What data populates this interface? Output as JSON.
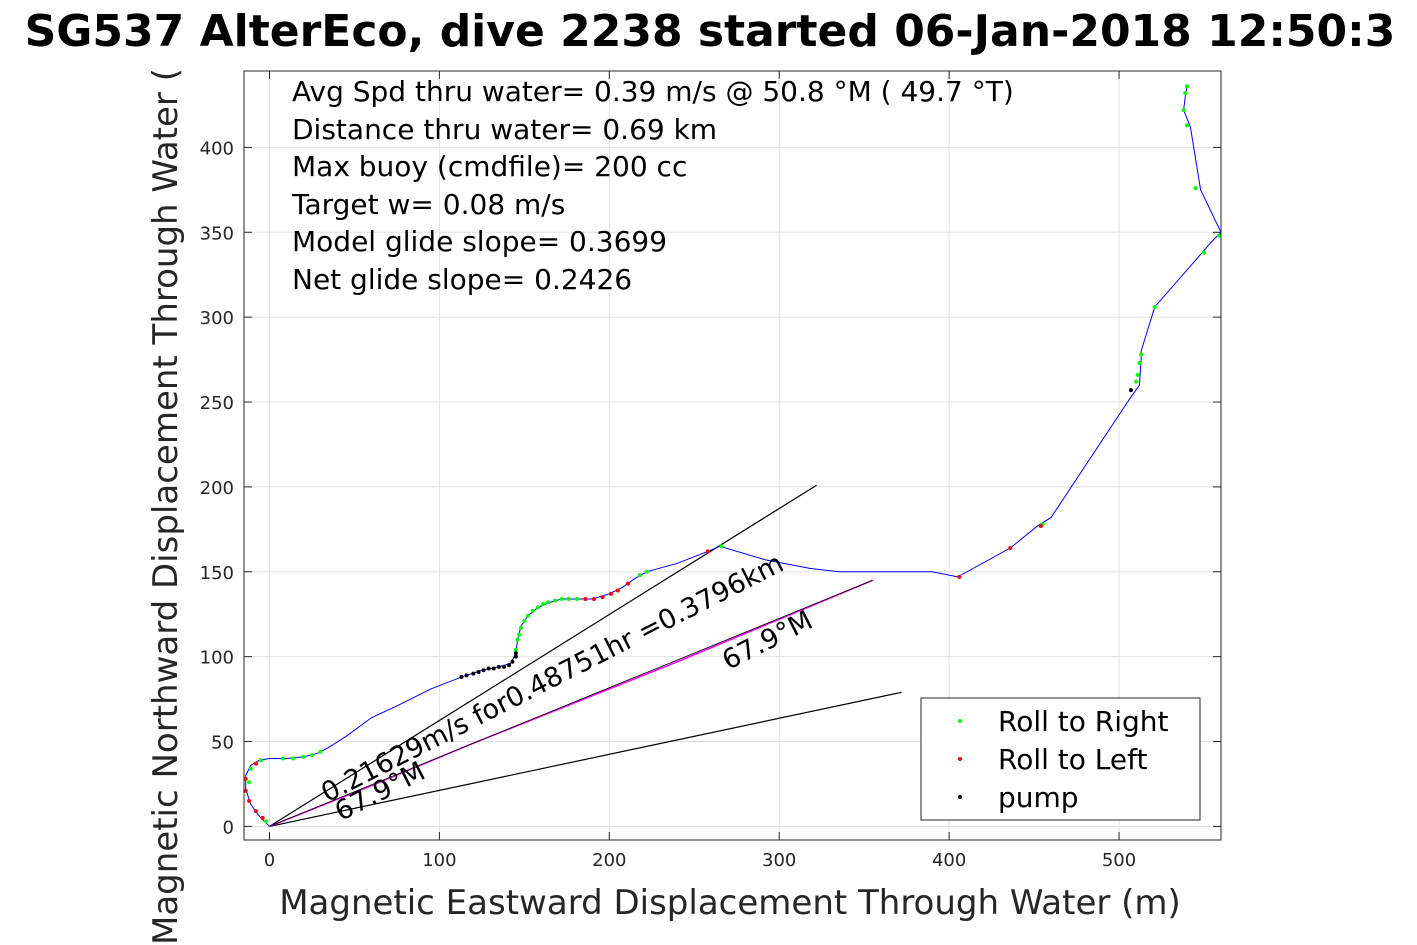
{
  "chart_data": {
    "type": "scatter",
    "title": "SG537 AlterEco, dive 2238 started 06-Jan-2018 12:50:3",
    "xlabel": "Magnetic Eastward Displacement Through Water (m)",
    "ylabel": "Magnetic Northward Displacement Through Water (",
    "xlim": [
      -15,
      560
    ],
    "ylim": [
      -8,
      445
    ],
    "xticks": [
      0,
      100,
      200,
      300,
      400,
      500
    ],
    "yticks": [
      0,
      50,
      100,
      150,
      200,
      250,
      300,
      350,
      400
    ],
    "grid": true,
    "legend_position": "bottom-right",
    "info_lines": [
      "Avg Spd thru water=  0.39 m/s @  50.8 °M ( 49.7 °T)",
      "Distance thru water=  0.69 km",
      "Max buoy (cmdfile)= 200 cc",
      "Target w= 0.08 m/s",
      "Model glide slope= 0.3699",
      "Net glide slope= 0.2426"
    ],
    "annotations": [
      {
        "text": "0.21629m/s for0.48751hr =0.3796km",
        "x": 34,
        "y": 14,
        "angle": 27
      },
      {
        "text": "67.9°M",
        "x": 42,
        "y": 3,
        "angle": 27
      },
      {
        "text": "67.9°M",
        "x": 270,
        "y": 92,
        "angle": 27
      }
    ],
    "colors": {
      "track": "#0000ff",
      "right": "#00ff00",
      "left": "#ff0000",
      "pump": "#000000",
      "current": "#ff00ff",
      "guide": "#000000"
    },
    "track": [
      [
        0,
        0
      ],
      [
        -6,
        6
      ],
      [
        -11,
        13
      ],
      [
        -14,
        22
      ],
      [
        -14,
        30
      ],
      [
        -11,
        36
      ],
      [
        -6,
        39
      ],
      [
        0,
        40
      ],
      [
        10,
        40
      ],
      [
        20,
        41
      ],
      [
        28,
        43
      ],
      [
        34,
        46
      ],
      [
        45,
        53
      ],
      [
        60,
        64
      ],
      [
        75,
        71
      ],
      [
        95,
        81
      ],
      [
        113,
        88
      ],
      [
        125,
        92
      ],
      [
        135,
        94
      ],
      [
        142,
        96
      ],
      [
        145,
        102
      ],
      [
        146,
        110
      ],
      [
        148,
        118
      ],
      [
        152,
        124
      ],
      [
        158,
        129
      ],
      [
        165,
        132
      ],
      [
        172,
        134
      ],
      [
        180,
        134
      ],
      [
        190,
        134
      ],
      [
        200,
        137
      ],
      [
        208,
        141
      ],
      [
        215,
        146
      ],
      [
        222,
        150
      ],
      [
        240,
        155
      ],
      [
        258,
        162
      ],
      [
        265,
        165
      ],
      [
        292,
        157
      ],
      [
        318,
        152
      ],
      [
        335,
        150
      ],
      [
        390,
        150
      ],
      [
        405,
        147
      ],
      [
        436,
        164
      ],
      [
        452,
        177
      ],
      [
        460,
        182
      ],
      [
        505,
        250
      ],
      [
        512,
        260
      ],
      [
        513,
        275
      ],
      [
        513,
        280
      ],
      [
        521,
        306
      ],
      [
        555,
        345
      ],
      [
        560,
        350
      ],
      [
        548,
        375
      ],
      [
        542,
        412
      ],
      [
        538,
        422
      ],
      [
        539,
        430
      ],
      [
        540,
        436
      ]
    ],
    "current_track": [
      [
        0,
        0
      ],
      [
        60,
        24
      ],
      [
        120,
        49
      ],
      [
        180,
        73
      ],
      [
        240,
        97
      ],
      [
        300,
        122
      ],
      [
        355,
        145
      ]
    ],
    "guide_lines": [
      [
        [
          0,
          0
        ],
        [
          322,
          201
        ]
      ],
      [
        [
          0,
          0
        ],
        [
          372,
          79
        ]
      ]
    ],
    "series": [
      {
        "name": "Roll to Right",
        "marker": "right",
        "points": [
          [
            -2,
            3
          ],
          [
            -12,
            26
          ],
          [
            -11,
            34
          ],
          [
            -5,
            39
          ],
          [
            8,
            40
          ],
          [
            14,
            40
          ],
          [
            20,
            41
          ],
          [
            25,
            42
          ],
          [
            30,
            44
          ],
          [
            145,
            104
          ],
          [
            146,
            110
          ],
          [
            147,
            113
          ],
          [
            148,
            117
          ],
          [
            150,
            121
          ],
          [
            152,
            124
          ],
          [
            155,
            127
          ],
          [
            158,
            129
          ],
          [
            161,
            131
          ],
          [
            164,
            132
          ],
          [
            168,
            133
          ],
          [
            172,
            134
          ],
          [
            176,
            134
          ],
          [
            181,
            134
          ],
          [
            222,
            150
          ],
          [
            218,
            148
          ],
          [
            266,
            165
          ],
          [
            455,
            178
          ],
          [
            510,
            262
          ],
          [
            511,
            266
          ],
          [
            512,
            273
          ],
          [
            513,
            278
          ],
          [
            521,
            306
          ],
          [
            550,
            338
          ],
          [
            559,
            348
          ],
          [
            545,
            376
          ],
          [
            540,
            413
          ],
          [
            538,
            422
          ],
          [
            539,
            432
          ],
          [
            540,
            436
          ]
        ]
      },
      {
        "name": "Roll to Left",
        "marker": "left",
        "points": [
          [
            -4,
            5
          ],
          [
            -8,
            9
          ],
          [
            -12,
            15
          ],
          [
            -14,
            21
          ],
          [
            -14,
            28
          ],
          [
            -8,
            37
          ],
          [
            186,
            134
          ],
          [
            191,
            134
          ],
          [
            196,
            135
          ],
          [
            201,
            137
          ],
          [
            205,
            139
          ],
          [
            211,
            143
          ],
          [
            258,
            162
          ],
          [
            406,
            147
          ],
          [
            436,
            164
          ],
          [
            454,
            177
          ]
        ]
      },
      {
        "name": "pump",
        "marker": "pump",
        "points": [
          [
            113,
            88
          ],
          [
            116,
            89
          ],
          [
            120,
            90
          ],
          [
            123,
            91
          ],
          [
            126,
            92
          ],
          [
            129,
            93
          ],
          [
            132,
            93
          ],
          [
            135,
            94
          ],
          [
            138,
            94
          ],
          [
            141,
            95
          ],
          [
            143,
            97
          ],
          [
            145,
            100
          ],
          [
            145,
            102
          ],
          [
            507,
            257
          ]
        ]
      }
    ]
  }
}
